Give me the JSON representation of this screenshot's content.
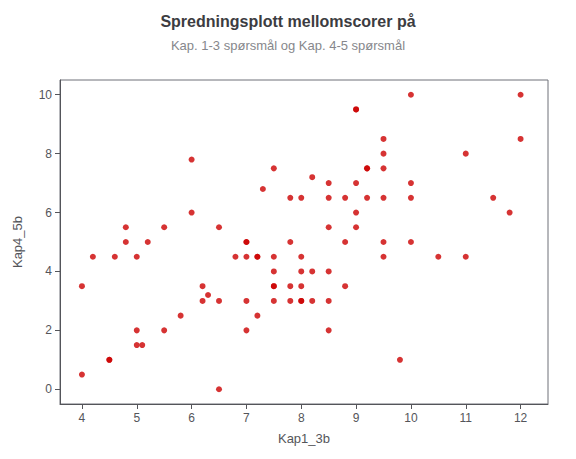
{
  "chart_data": {
    "type": "scatter",
    "title": "Spredningsplott mellomscorer på",
    "subtitle": "Kap. 1-3 spørsmål og Kap. 4-5 spørsmål",
    "xlabel": "Kap1_3b",
    "ylabel": "Kap4_5b",
    "xlim": [
      3.6,
      12.5
    ],
    "ylim": [
      -0.5,
      10.5
    ],
    "xticks": [
      4,
      5,
      6,
      7,
      8,
      9,
      10,
      11,
      12
    ],
    "yticks": [
      0,
      2,
      4,
      6,
      8,
      10
    ],
    "color": "#cc0000",
    "grid": false,
    "x": [
      4.0,
      4.0,
      4.2,
      4.5,
      4.5,
      4.6,
      4.8,
      4.8,
      5.0,
      5.0,
      5.0,
      5.1,
      5.2,
      5.5,
      5.5,
      5.8,
      6.0,
      6.0,
      6.2,
      6.2,
      6.3,
      6.5,
      6.5,
      6.5,
      6.8,
      7.0,
      7.0,
      7.0,
      7.0,
      7.0,
      7.2,
      7.2,
      7.2,
      7.3,
      7.5,
      7.5,
      7.5,
      7.5,
      7.5,
      7.5,
      7.8,
      7.8,
      7.8,
      7.8,
      8.0,
      8.0,
      8.0,
      8.0,
      8.0,
      8.0,
      8.2,
      8.2,
      8.2,
      8.5,
      8.5,
      8.5,
      8.5,
      8.5,
      8.5,
      8.8,
      8.8,
      8.8,
      9.0,
      9.0,
      9.0,
      9.0,
      9.0,
      9.2,
      9.2,
      9.2,
      9.5,
      9.5,
      9.5,
      9.5,
      9.5,
      9.5,
      9.8,
      10.0,
      10.0,
      10.0,
      10.0,
      10.5,
      11.0,
      11.0,
      11.5,
      11.8,
      12.0,
      12.0
    ],
    "y": [
      3.5,
      0.5,
      4.5,
      1.0,
      1.0,
      4.5,
      5.0,
      5.5,
      1.5,
      2.0,
      4.5,
      1.5,
      5.0,
      2.0,
      5.5,
      2.5,
      7.8,
      6.0,
      3.0,
      3.5,
      3.2,
      3.0,
      0.0,
      5.5,
      4.5,
      2.0,
      3.0,
      5.0,
      4.5,
      5.0,
      2.5,
      4.5,
      4.5,
      6.8,
      3.0,
      3.5,
      3.5,
      4.0,
      4.5,
      7.5,
      3.0,
      3.5,
      5.0,
      6.5,
      3.0,
      3.0,
      3.5,
      4.0,
      4.5,
      6.5,
      3.0,
      4.0,
      7.2,
      2.0,
      3.0,
      4.0,
      5.5,
      6.5,
      7.0,
      3.5,
      5.0,
      6.5,
      5.5,
      6.0,
      7.0,
      9.5,
      9.5,
      6.5,
      7.5,
      7.5,
      4.5,
      5.0,
      6.5,
      7.5,
      8.5,
      8.0,
      1.0,
      5.0,
      6.5,
      7.0,
      10.0,
      4.5,
      4.5,
      8.0,
      6.5,
      6.0,
      8.5,
      10.0
    ]
  }
}
